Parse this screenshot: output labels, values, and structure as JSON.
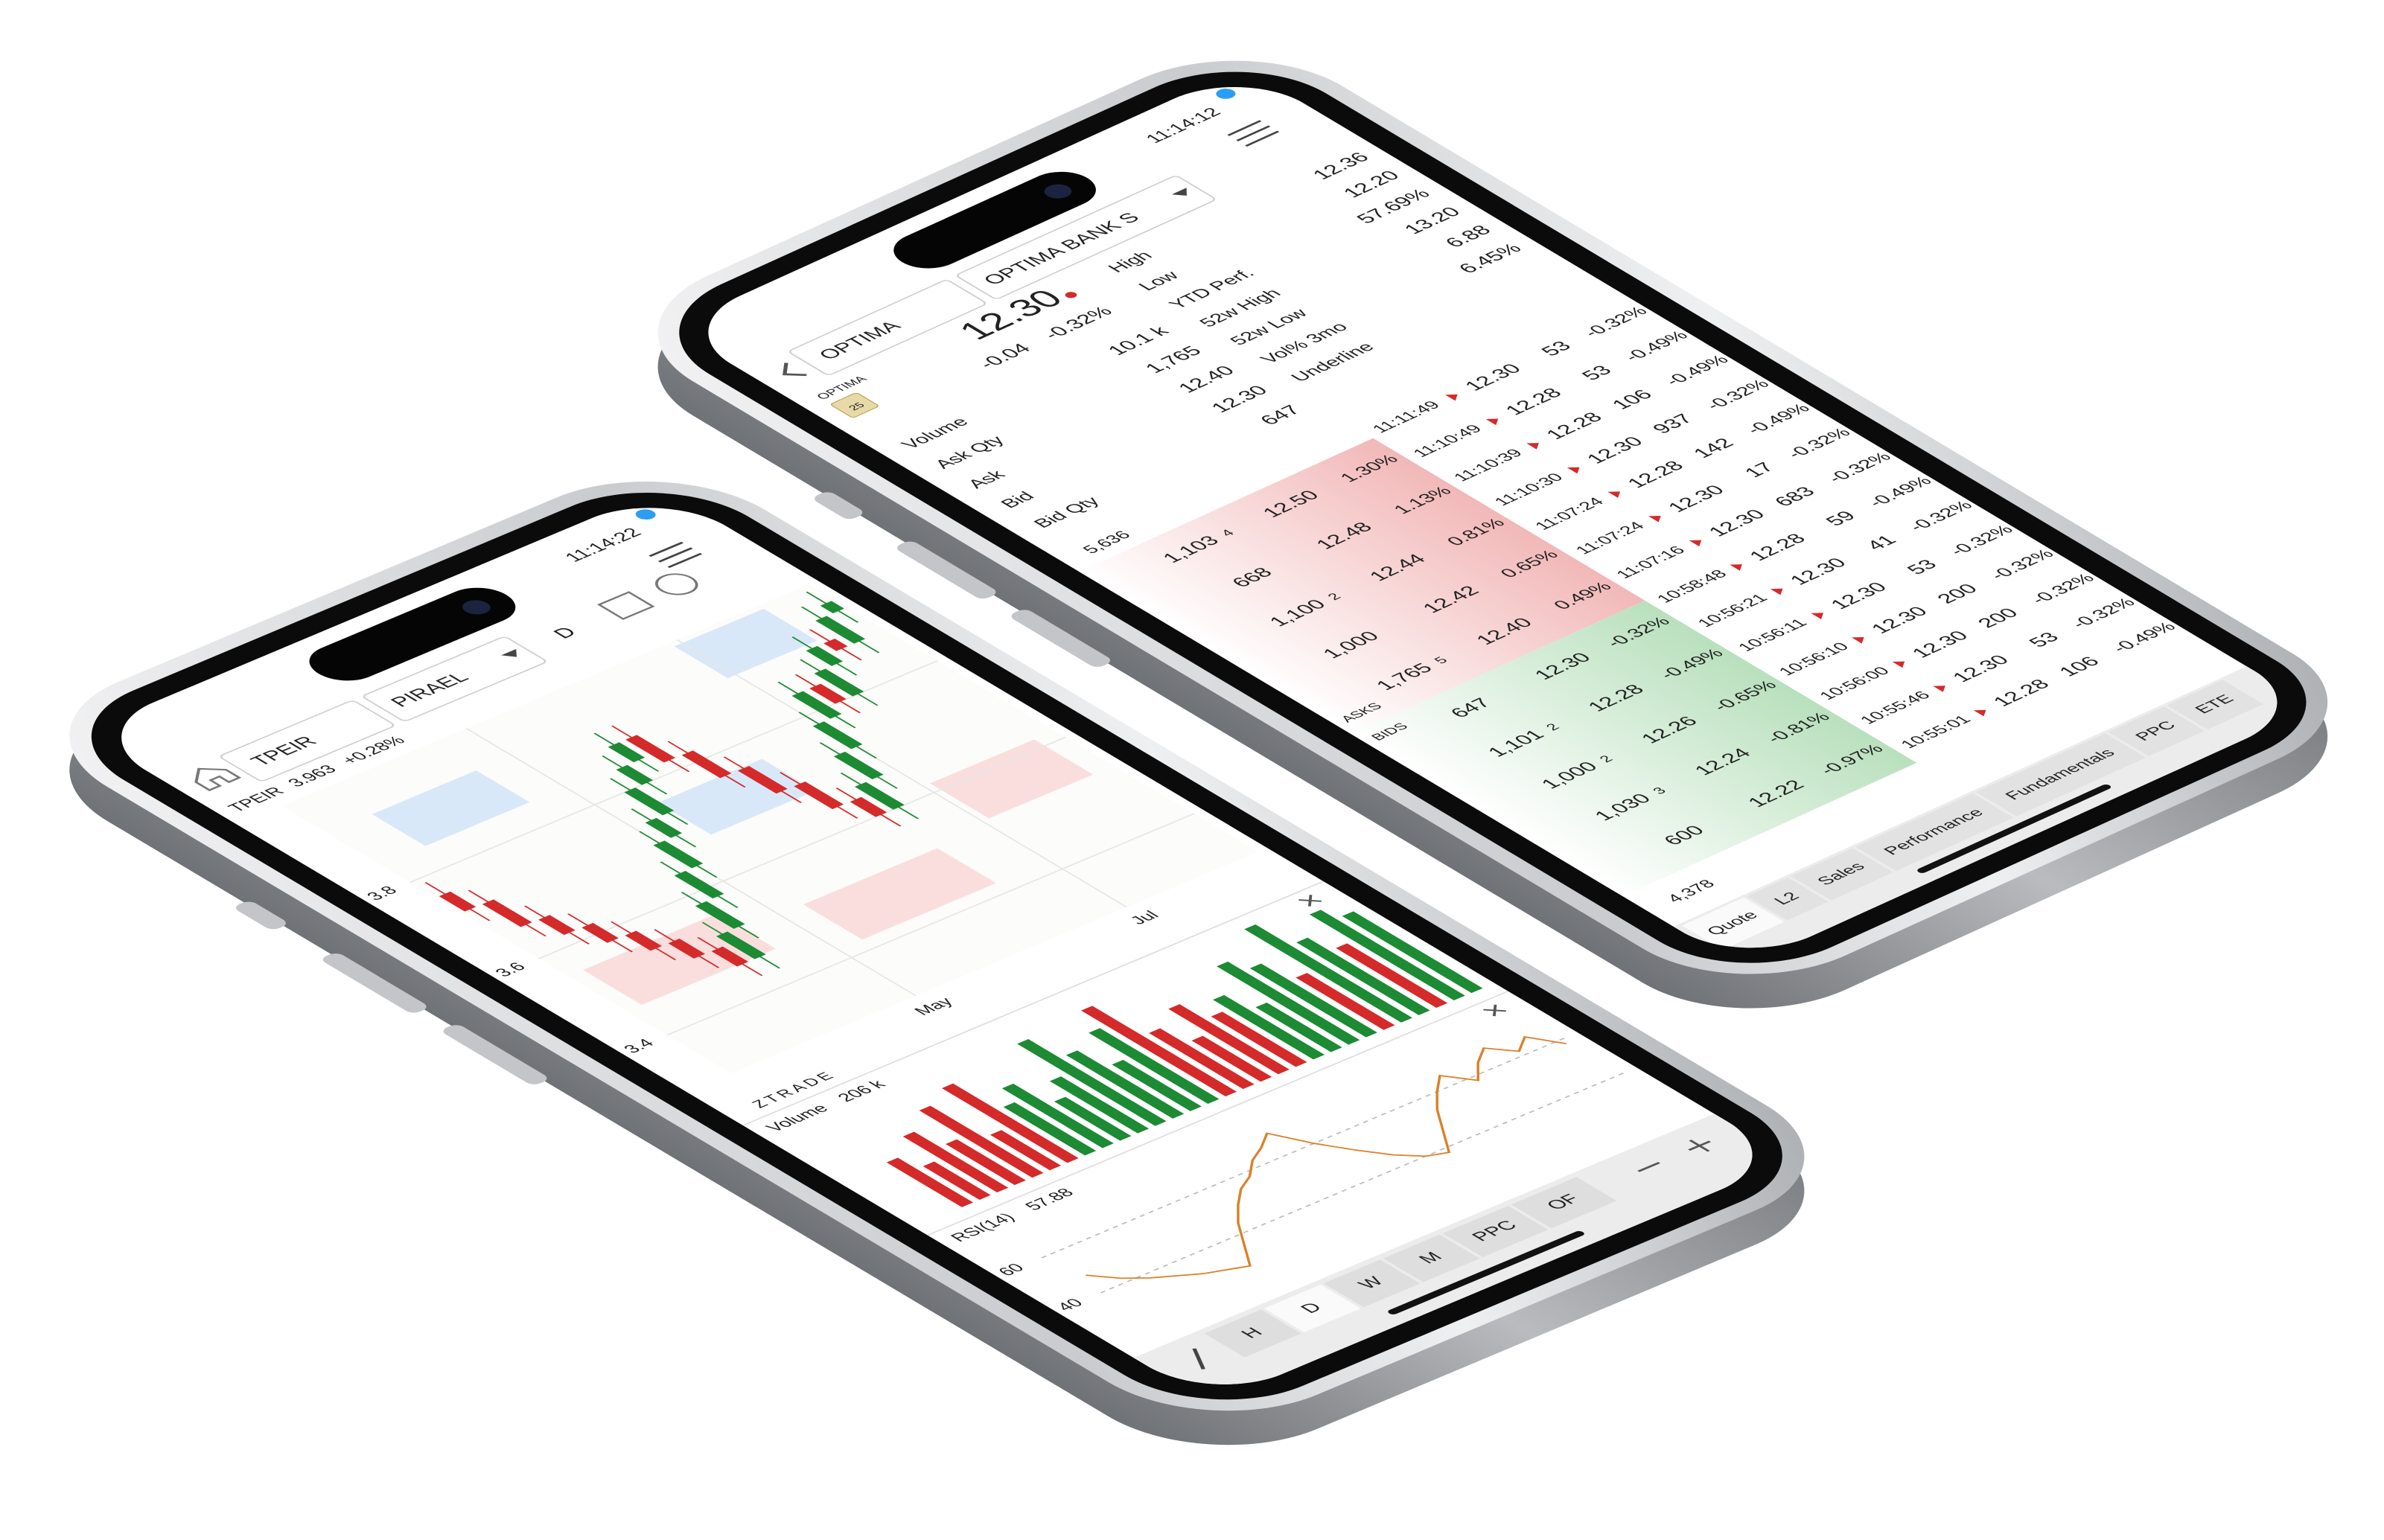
{
  "chart_phone": {
    "status_time": "11:14:22",
    "symbol": "TPEIR",
    "exchange": "PIRAEL",
    "interval": "D",
    "quote_line": {
      "symbol": "TPEIR",
      "price": 3.963,
      "change": "+0.28%"
    },
    "chart": {
      "type": "candlestick",
      "open": [
        3.76,
        3.72,
        3.66,
        3.62,
        3.58,
        3.54,
        3.5,
        3.46,
        3.52,
        3.58,
        3.64,
        3.7,
        3.74,
        3.8,
        3.84,
        3.88,
        3.82,
        3.76,
        3.7,
        3.64,
        3.6,
        3.66,
        3.72,
        3.78,
        3.84,
        3.8,
        3.86,
        3.9,
        3.88,
        3.94
      ],
      "high": [
        3.79,
        3.75,
        3.69,
        3.65,
        3.61,
        3.57,
        3.53,
        3.55,
        3.61,
        3.67,
        3.73,
        3.77,
        3.83,
        3.87,
        3.91,
        3.91,
        3.85,
        3.79,
        3.73,
        3.67,
        3.69,
        3.75,
        3.81,
        3.87,
        3.87,
        3.89,
        3.93,
        3.93,
        3.97,
        3.99
      ],
      "low": [
        3.69,
        3.63,
        3.59,
        3.55,
        3.51,
        3.47,
        3.43,
        3.43,
        3.49,
        3.55,
        3.61,
        3.67,
        3.71,
        3.77,
        3.81,
        3.79,
        3.73,
        3.67,
        3.61,
        3.57,
        3.57,
        3.63,
        3.69,
        3.75,
        3.77,
        3.77,
        3.83,
        3.85,
        3.85,
        3.91
      ],
      "close": [
        3.72,
        3.66,
        3.62,
        3.58,
        3.54,
        3.5,
        3.46,
        3.52,
        3.58,
        3.64,
        3.7,
        3.74,
        3.8,
        3.84,
        3.88,
        3.82,
        3.76,
        3.7,
        3.64,
        3.6,
        3.66,
        3.72,
        3.78,
        3.84,
        3.8,
        3.86,
        3.9,
        3.88,
        3.94,
        3.96
      ],
      "dates": [
        null,
        null,
        null,
        null,
        null,
        null,
        null,
        null,
        null,
        null,
        "May",
        null,
        null,
        null,
        null,
        null,
        null,
        null,
        null,
        null,
        null,
        null,
        "Jul",
        null,
        null,
        null,
        null,
        null,
        null,
        null
      ],
      "ylim": [
        3.3,
        4.0
      ],
      "yticks": [
        3.4,
        3.6,
        3.8
      ],
      "up_color": "#1d8a34",
      "down_color": "#d42a2a",
      "grid": true
    },
    "watermark": "ZTRADE",
    "volume": {
      "type": "bar",
      "label": "Volume",
      "value_label": "206 k",
      "values": [
        120,
        90,
        150,
        110,
        180,
        95,
        200,
        130,
        160,
        105,
        140,
        220,
        170,
        125,
        190,
        230,
        150,
        110,
        175,
        135,
        160,
        120,
        210,
        185,
        140,
        250,
        195,
        160,
        230,
        206
      ],
      "ylim": [
        0,
        260
      ]
    },
    "rsi": {
      "type": "line",
      "label": "RSI(14)",
      "value": 57.88,
      "values": [
        48,
        42,
        38,
        35,
        32,
        30,
        28,
        36,
        44,
        50,
        55,
        58,
        63,
        66,
        70,
        60,
        52,
        45,
        40,
        38,
        46,
        54,
        60,
        65,
        58,
        64,
        68,
        62,
        66,
        57.88
      ],
      "ylim": [
        20,
        80
      ],
      "yticks": [
        40,
        60
      ],
      "color": "#d9822b"
    },
    "tabs": [
      "H",
      "D",
      "W",
      "M",
      "PPC",
      "OF"
    ]
  },
  "quote_phone": {
    "status_time": "11:14:12",
    "search": "OPTIMA",
    "instrument": "OPTIMA BANK S",
    "ticker": "OPTIMA",
    "event_badge": "25",
    "price": "12.30",
    "change": "-0.04",
    "change_pct": "-0.32%",
    "stats_left": [
      {
        "label": "Volume",
        "value": "10.1 k"
      },
      {
        "label": "Ask Qty",
        "value": "1,765"
      },
      {
        "label": "Ask",
        "value": "12.40"
      },
      {
        "label": "Bid",
        "value": "12.30"
      },
      {
        "label": "Bid Qty",
        "value": "647"
      }
    ],
    "stats_right": [
      {
        "label": "High",
        "value": "12.36"
      },
      {
        "label": "Low",
        "value": "12.20"
      },
      {
        "label": "YTD Perf.",
        "value": "57.69%"
      },
      {
        "label": "52w High",
        "value": "13.20"
      },
      {
        "label": "52w Low",
        "value": "6.88"
      },
      {
        "label": "Vol% 3mo",
        "value": "6.45%"
      },
      {
        "label": "Underline"
      }
    ],
    "ask_total": "5,636",
    "asks_label": "ASKS",
    "asks": [
      {
        "qty": "1,103",
        "orders": "4",
        "price": "12.50",
        "pct": "1.30%"
      },
      {
        "qty": "668",
        "price": "12.48",
        "pct": "1.13%"
      },
      {
        "qty": "1,100",
        "orders": "2",
        "price": "12.44",
        "pct": "0.81%"
      },
      {
        "qty": "1,000",
        "price": "12.42",
        "pct": "0.65%"
      },
      {
        "qty": "1,765",
        "orders": "5",
        "price": "12.40",
        "pct": "0.49%"
      }
    ],
    "bids_label": "BIDS",
    "bids": [
      {
        "qty": "647",
        "price": "12.30",
        "pct": "-0.32%"
      },
      {
        "qty": "1,101",
        "orders": "2",
        "price": "12.28",
        "pct": "-0.49%"
      },
      {
        "qty": "1,000",
        "orders": "2",
        "price": "12.26",
        "pct": "-0.65%"
      },
      {
        "qty": "1,030",
        "orders": "3",
        "price": "12.24",
        "pct": "-0.81%"
      },
      {
        "qty": "600",
        "price": "12.22",
        "pct": "-0.97%"
      }
    ],
    "bid_total": "4,378",
    "trades": [
      {
        "time": "11:11:49",
        "price": "12.30",
        "qty": "53",
        "pct": "-0.32%",
        "color": "#1d8a34"
      },
      {
        "time": "11:10:49",
        "price": "12.28",
        "qty": "53",
        "pct": "-0.49%",
        "color": "#222222"
      },
      {
        "time": "11:10:39",
        "price": "12.28",
        "qty": "106",
        "pct": "-0.49%",
        "color": "#d42a2a"
      },
      {
        "time": "11:10:30",
        "price": "12.30",
        "qty": "937",
        "pct": "-0.32%",
        "color": "#1d8a34"
      },
      {
        "time": "11:07:24",
        "price": "12.28",
        "qty": "142",
        "pct": "-0.49%",
        "color": "#d42a2a"
      },
      {
        "time": "11:07:24",
        "price": "12.30",
        "qty": "17",
        "pct": "-0.32%",
        "color": "#222222"
      },
      {
        "time": "11:07:16",
        "price": "12.30",
        "qty": "683",
        "pct": "-0.32%",
        "color": "#1d8a34"
      },
      {
        "time": "10:58:48",
        "price": "12.28",
        "qty": "59",
        "pct": "-0.49%",
        "color": "#d42a2a"
      },
      {
        "time": "10:56:21",
        "price": "12.30",
        "qty": "41",
        "pct": "-0.32%",
        "color": "#222222"
      },
      {
        "time": "10:56:11",
        "price": "12.30",
        "qty": "53",
        "pct": "-0.32%",
        "color": "#222222"
      },
      {
        "time": "10:56:10",
        "price": "12.30",
        "qty": "200",
        "pct": "-0.32%",
        "color": "#222222"
      },
      {
        "time": "10:56:00",
        "price": "12.30",
        "qty": "200",
        "pct": "-0.32%",
        "color": "#222222"
      },
      {
        "time": "10:55:46",
        "price": "12.30",
        "qty": "53",
        "pct": "-0.32%",
        "color": "#1d8a34"
      },
      {
        "time": "10:55:01",
        "price": "12.28",
        "qty": "106",
        "pct": "-0.49%",
        "color": "#222222"
      }
    ],
    "tabs": [
      "Quote",
      "L2",
      "Sales",
      "Performance",
      "Fundamentals",
      "PPC",
      "ETE"
    ]
  }
}
